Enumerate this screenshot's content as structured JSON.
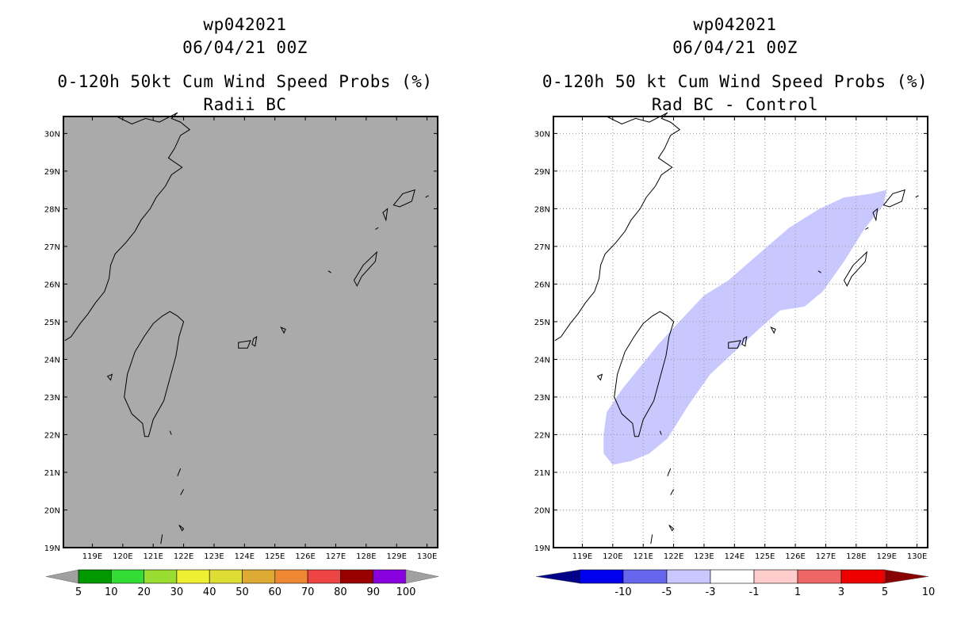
{
  "left_panel": {
    "title_storm": "wp042021",
    "title_time": "06/04/21 00Z",
    "title_product": "0-120h 50kt Cum Wind Speed Probs (%)",
    "title_sub": "Radii BC",
    "background_color": "#aaaaaa",
    "colorbar": {
      "labels": [
        "5",
        "10",
        "20",
        "30",
        "40",
        "50",
        "60",
        "70",
        "80",
        "90",
        "100"
      ],
      "colors": [
        "#a0a0a0",
        "#009900",
        "#33dd33",
        "#99dd33",
        "#eeee33",
        "#dddd33",
        "#ddaa33",
        "#ee8833",
        "#ee4444",
        "#990000",
        "#8800dd",
        "#a0a0a0"
      ]
    }
  },
  "right_panel": {
    "title_storm": "wp042021",
    "title_time": "06/04/21 00Z",
    "title_product": "0-120h 50 kt Cum Wind Speed Probs (%)",
    "title_sub": "Rad BC - Control",
    "background_color": "#ffffff",
    "shaded_field": {
      "range": "-3 to -1",
      "color": "#c8c8ff"
    },
    "colorbar": {
      "labels": [
        "-10",
        "-5",
        "-3",
        "-1",
        "1",
        "3",
        "5",
        "10"
      ],
      "colors": [
        "#000088",
        "#0000ee",
        "#6666ee",
        "#c8c8ff",
        "#ffffff",
        "#ffcccc",
        "#ee6666",
        "#ee0000",
        "#880000"
      ]
    }
  },
  "map": {
    "lat_labels": [
      "30N",
      "29N",
      "28N",
      "27N",
      "26N",
      "25N",
      "24N",
      "23N",
      "22N",
      "21N",
      "20N",
      "19N"
    ],
    "lon_labels": [
      "119E",
      "120E",
      "121E",
      "122E",
      "123E",
      "124E",
      "125E",
      "126E",
      "127E",
      "128E",
      "129E",
      "130E"
    ]
  }
}
